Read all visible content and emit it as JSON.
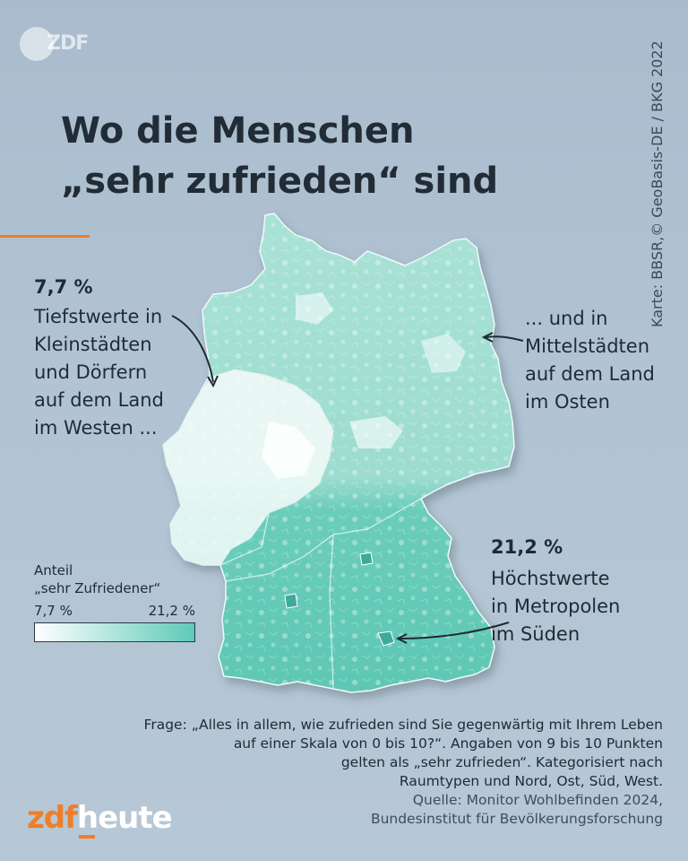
{
  "logo_top": "ZDF",
  "title_lines": [
    "Wo die Menschen",
    "„sehr zufrieden“ sind"
  ],
  "credit": "Karte: BBSR,© GeoBasis-DE / BKG 2022",
  "low": {
    "value": "7,7 %",
    "lines": [
      "Tiefstwerte in",
      "Kleinstädten",
      "und Dörfern",
      "auf dem Land",
      "im Westen ..."
    ]
  },
  "east": {
    "lines": [
      "... und in",
      "Mittelstädten",
      "auf dem Land",
      "im Osten"
    ]
  },
  "high": {
    "value": "21,2 %",
    "lines": [
      "Höchstwerte",
      "in Metropolen",
      "im Süden"
    ]
  },
  "legend": {
    "title_lines": [
      "Anteil",
      "„sehr Zufriedener“"
    ],
    "min": "7,7 %",
    "max": "21,2 %",
    "min_value": 7.7,
    "max_value": 21.2,
    "color_low": "#ffffff",
    "color_high": "#5fcab7"
  },
  "footnote_lines": [
    "Frage: „Alles in allem, wie zufrieden sind Sie gegenwärtig mit Ihrem Leben",
    "auf einer Skala von 0 bis 10?“. Angaben von 9 bis 10 Punkten",
    "gelten als „sehr zufrieden“. Kategorisiert nach",
    "Raumtypen und Nord, Ost, Süd, West."
  ],
  "source_lines": [
    "Quelle: Monitor Wohlbefinden 2024,",
    "Bundesinstitut für Bevölkerungsforschung"
  ],
  "brand": {
    "part1": "zdf",
    "part2": "heute"
  },
  "colors": {
    "background": "#aebfcf",
    "north_fill": "#a6e1d5",
    "south_fill": "#63cab8",
    "west_fill": "#f3fbf9",
    "accent": "#ef7d2a"
  }
}
